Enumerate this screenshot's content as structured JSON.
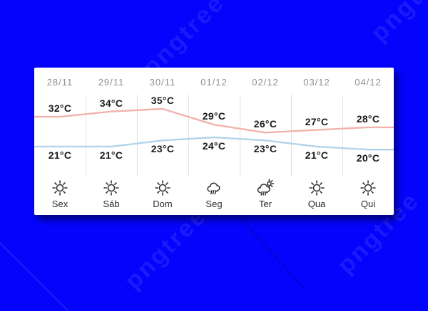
{
  "background": {
    "color": "#0404fc",
    "watermark_text": "pngtree"
  },
  "card": {
    "background": "#ffffff"
  },
  "chart_data": {
    "type": "line",
    "title": "",
    "categories": [
      "28/11",
      "29/11",
      "30/11",
      "01/12",
      "02/12",
      "03/12",
      "04/12"
    ],
    "day_labels": [
      "Sex",
      "Sáb",
      "Dom",
      "Seg",
      "Ter",
      "Qua",
      "Qui"
    ],
    "weather_icons": [
      "sun",
      "sun",
      "sun",
      "rain",
      "sun-rain",
      "sun",
      "sun"
    ],
    "unit": "°C",
    "series": [
      {
        "name": "high",
        "color": "#f1b3ac",
        "values": [
          32,
          34,
          35,
          29,
          26,
          27,
          28
        ]
      },
      {
        "name": "low",
        "color": "#b3d4e8",
        "values": [
          21,
          21,
          23,
          24,
          23,
          21,
          20
        ]
      }
    ],
    "ylim_high": [
      26,
      35
    ],
    "ylim_low": [
      20,
      24
    ],
    "grid": "vertical-separators",
    "legend": "none"
  }
}
